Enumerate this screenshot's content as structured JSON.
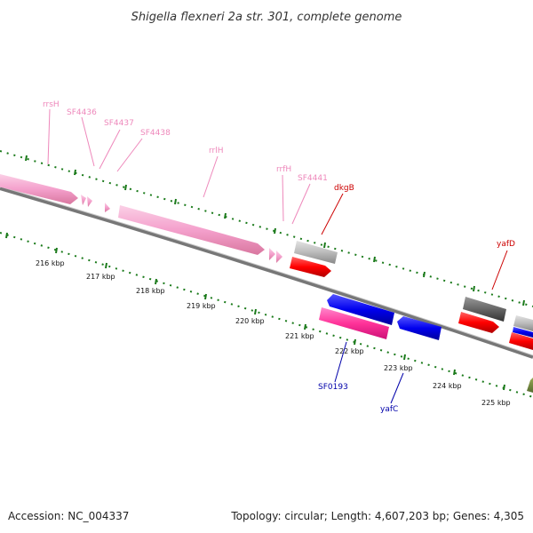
{
  "title": "Shigella flexneri 2a str. 301, complete genome",
  "footer": {
    "accession": "Accession: NC_004337",
    "summary": "Topology: circular; Length: 4,607,203 bp; Genes: 4,305"
  },
  "ticks": [
    "216 kbp",
    "217 kbp",
    "218 kbp",
    "219 kbp",
    "220 kbp",
    "221 kbp",
    "222 kbp",
    "223 kbp",
    "224 kbp",
    "225 kbp"
  ],
  "colors": {
    "rrna": "#f4a0cc",
    "cds_forward": "#ff0000",
    "cds_reverse": "#0000ee",
    "trna": "#ff3399",
    "grey": "#888888",
    "dark_grey": "#555555",
    "backbone": "#888888",
    "tick_green": "#1a7a1a",
    "label_pink": "#ee88bb",
    "label_red": "#cc0000",
    "label_blue": "#0000aa"
  },
  "labels": {
    "rrsH": "rrsH",
    "SF4436": "SF4436",
    "SF4437": "SF4437",
    "SF4438": "SF4438",
    "rrlH": "rrlH",
    "rrfH": "rrfH",
    "SF4441": "SF4441",
    "dkgB": "dkgB",
    "yafD": "yafD",
    "SF0193": "SF0193",
    "yafC": "yafC"
  }
}
